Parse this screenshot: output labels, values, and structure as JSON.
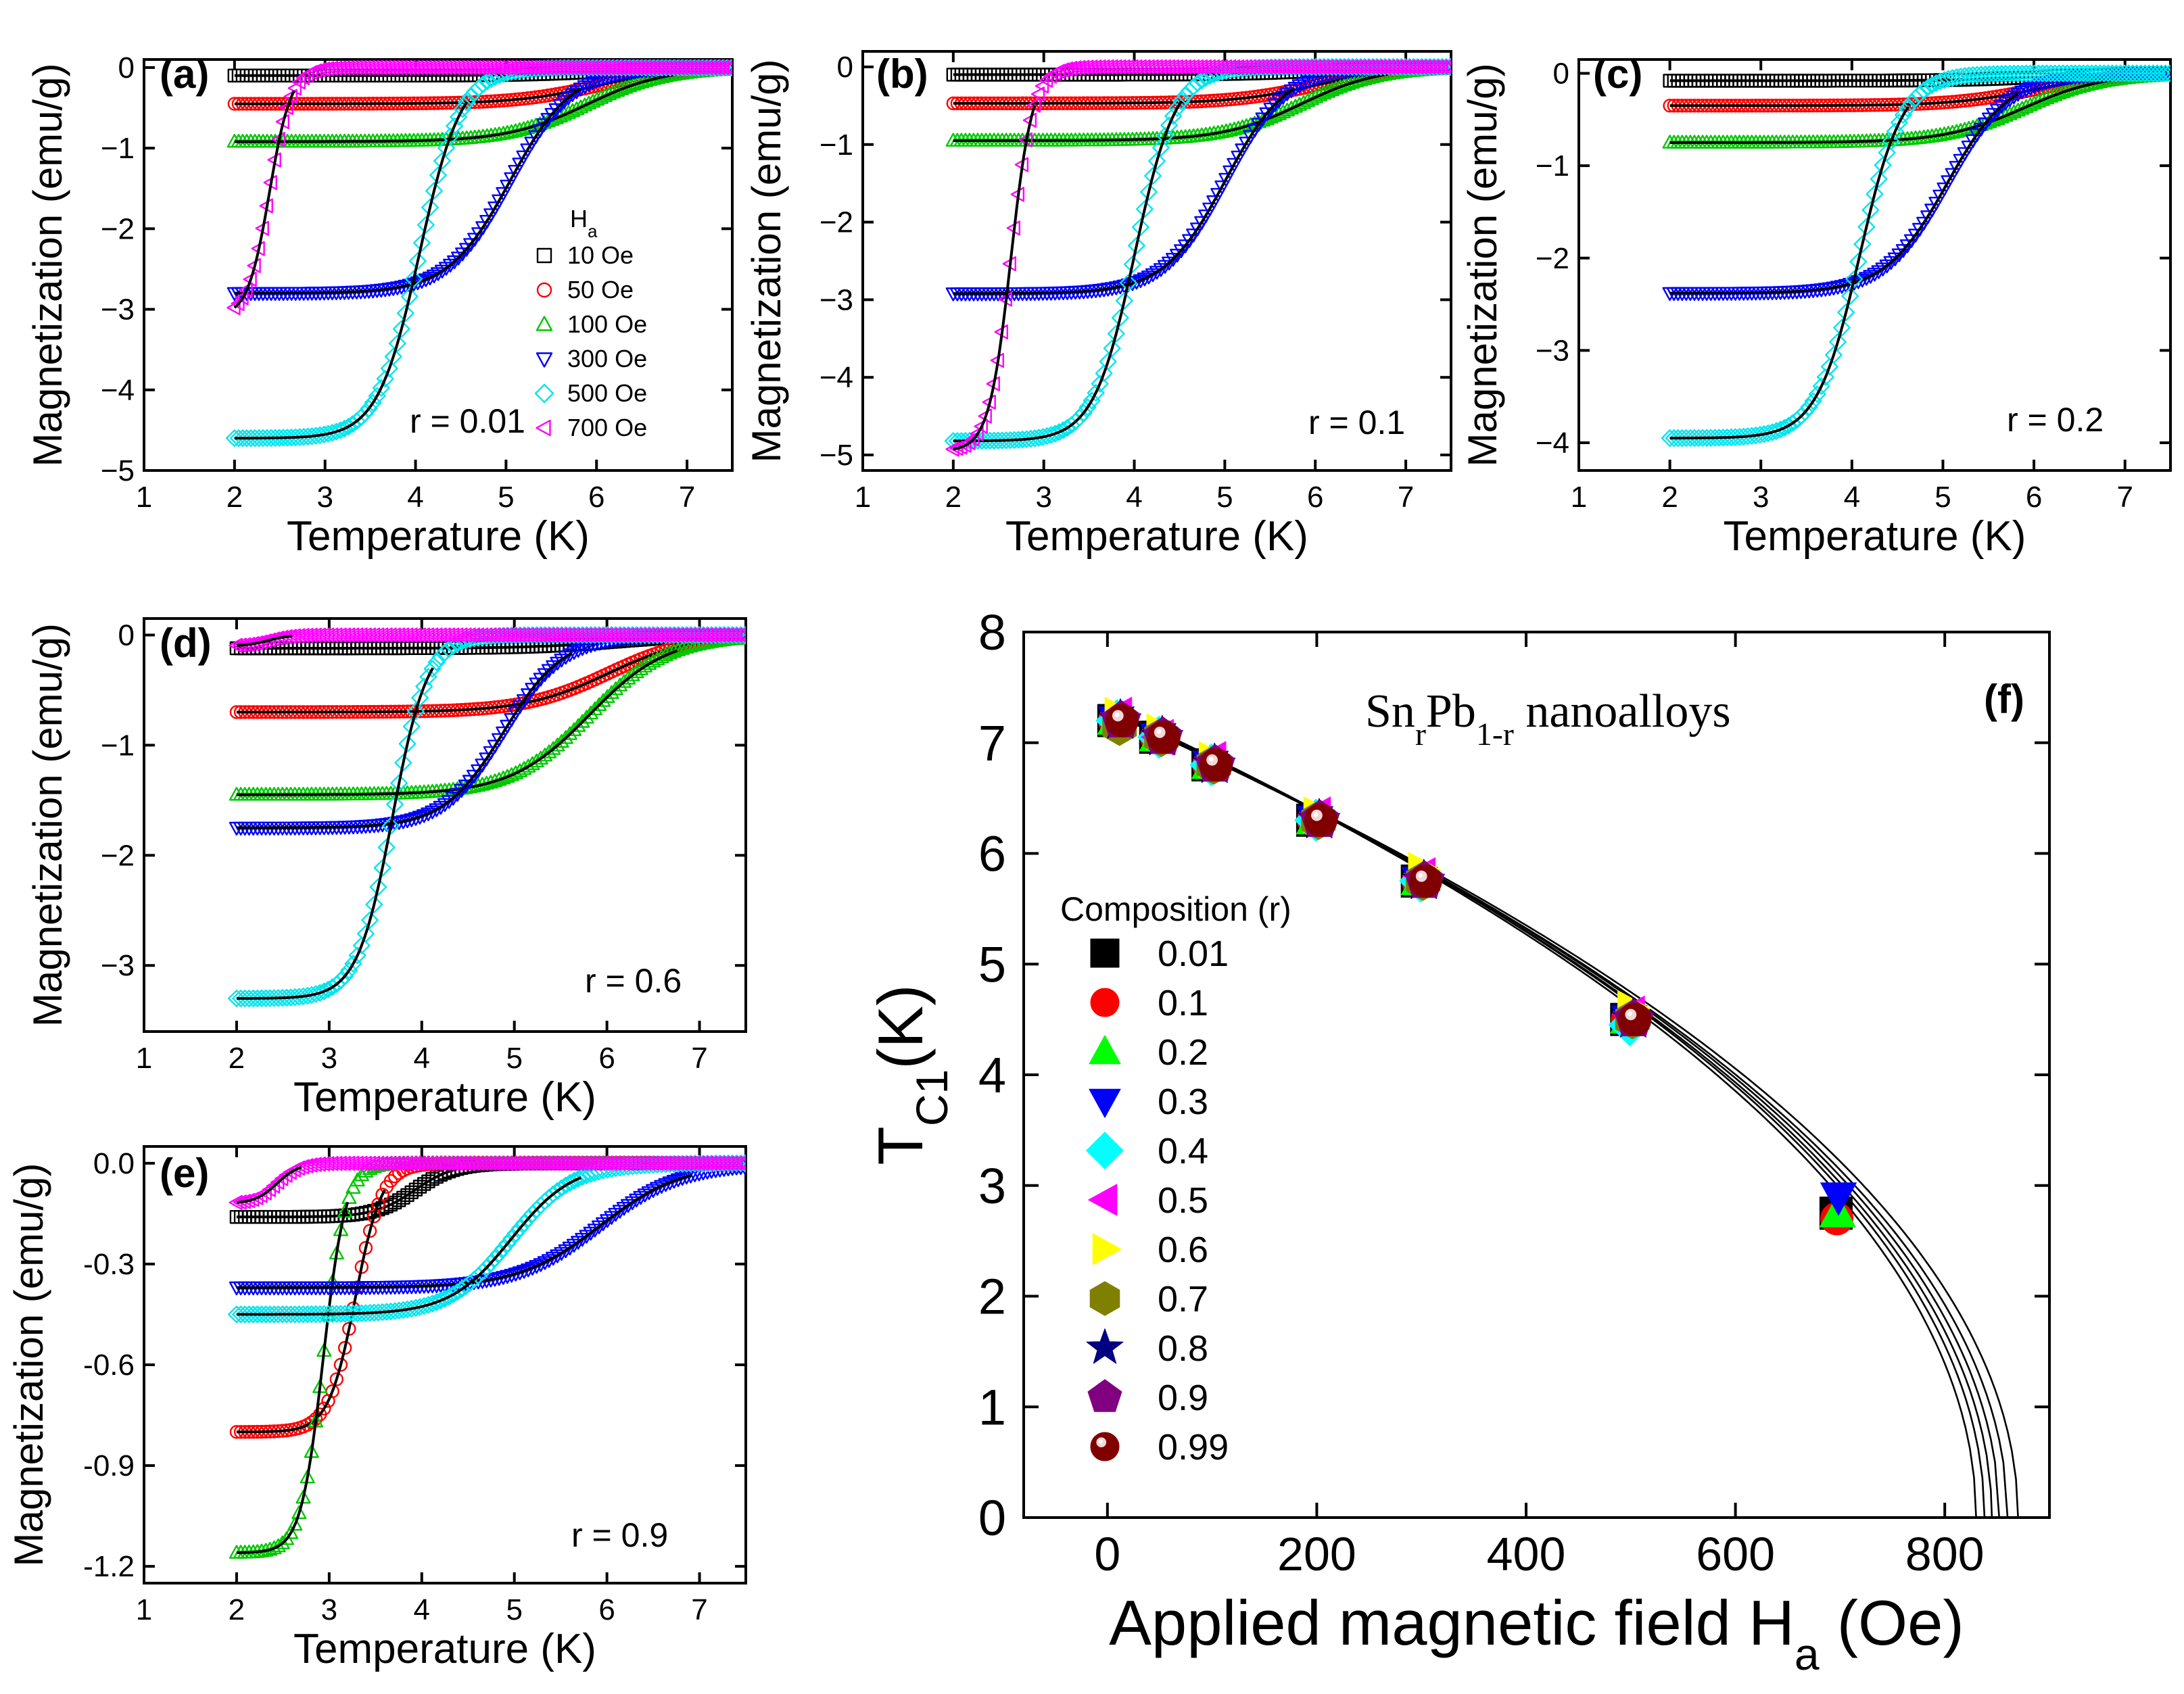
{
  "figure": {
    "title": "Sn_rPb_{1-r} nanoalloys",
    "title_parts": {
      "base1": "Sn",
      "sub1": "r",
      "base2": "Pb",
      "sub2": "1-r",
      "rest": " nanoalloys"
    }
  },
  "colors": {
    "10 Oe": "#000000",
    "50 Oe": "#ff0000",
    "100 Oe": "#00c800",
    "300 Oe": "#0000ff",
    "500 Oe": "#00e5ee",
    "700 Oe": "#ff00ff",
    "fit": "#000000"
  },
  "chart_data": [
    {
      "id": "a",
      "type": "scatter",
      "panel_label": "(a)",
      "annotation": "r = 0.01",
      "xlabel": "Temperature (K)",
      "ylabel": "Magnetization (emu/g)",
      "xlim": [
        1,
        7.5
      ],
      "ylim": [
        -5,
        0.1
      ],
      "xticks": [
        1,
        2,
        3,
        4,
        5,
        6,
        7
      ],
      "yticks": [
        0,
        -1,
        -2,
        -3,
        -4,
        -5
      ],
      "ytick_labels": [
        "0",
        "−1",
        "−2",
        "−3",
        "−4",
        "−5"
      ],
      "legend_title": "H_a",
      "legend_title_parts": {
        "base": "H",
        "sub": "a"
      },
      "legend": [
        "10 Oe",
        "50 Oe",
        "100 Oe",
        "300 Oe",
        "500 Oe",
        "700 Oe"
      ],
      "series": [
        {
          "name": "10 Oe",
          "marker": "square",
          "color": "#000000",
          "M0": -0.1,
          "Tc": 7.05,
          "T0": 2.0
        },
        {
          "name": "50 Oe",
          "marker": "circle",
          "color": "#ff0000",
          "M0": -0.45,
          "Tc": 7.0,
          "T0": 2.0
        },
        {
          "name": "100 Oe",
          "marker": "triangle-up",
          "color": "#00c800",
          "M0": -0.92,
          "Tc": 6.85,
          "T0": 2.0
        },
        {
          "name": "300 Oe",
          "marker": "triangle-down",
          "color": "#0000ff",
          "M0": -2.8,
          "Tc": 5.8,
          "T0": 2.0
        },
        {
          "name": "500 Oe",
          "marker": "diamond",
          "color": "#00e5ee",
          "M0": -4.6,
          "Tc": 4.55,
          "T0": 2.0
        },
        {
          "name": "700 Oe",
          "marker": "triangle-left",
          "color": "#ff00ff",
          "M0": -3.1,
          "Tc": 2.65,
          "T0": 2.0
        }
      ]
    },
    {
      "id": "b",
      "type": "scatter",
      "panel_label": "(b)",
      "annotation": "r = 0.1",
      "xlabel": "Temperature (K)",
      "ylabel": "Magnetization (emu/g)",
      "xlim": [
        1,
        7.5
      ],
      "ylim": [
        -5.2,
        0.2
      ],
      "xticks": [
        1,
        2,
        3,
        4,
        5,
        6,
        7
      ],
      "yticks": [
        0,
        -1,
        -2,
        -3,
        -4,
        -5
      ],
      "ytick_labels": [
        "0",
        "−1",
        "−2",
        "−3",
        "−4",
        "−5"
      ],
      "series": [
        {
          "name": "10 Oe",
          "marker": "square",
          "color": "#000000",
          "M0": -0.1,
          "Tc": 7.05,
          "T0": 2.0
        },
        {
          "name": "50 Oe",
          "marker": "circle",
          "color": "#ff0000",
          "M0": -0.47,
          "Tc": 7.0,
          "T0": 2.0
        },
        {
          "name": "100 Oe",
          "marker": "triangle-up",
          "color": "#00c800",
          "M0": -0.95,
          "Tc": 6.8,
          "T0": 2.0
        },
        {
          "name": "300 Oe",
          "marker": "triangle-down",
          "color": "#0000ff",
          "M0": -2.92,
          "Tc": 5.75,
          "T0": 2.0
        },
        {
          "name": "500 Oe",
          "marker": "diamond",
          "color": "#00e5ee",
          "M0": -4.82,
          "Tc": 4.5,
          "T0": 2.0
        },
        {
          "name": "700 Oe",
          "marker": "triangle-left",
          "color": "#ff00ff",
          "M0": -4.95,
          "Tc": 2.9,
          "T0": 2.0
        }
      ]
    },
    {
      "id": "c",
      "type": "scatter",
      "panel_label": "(c)",
      "annotation": "r = 0.2",
      "xlabel": "Temperature (K)",
      "ylabel": "Magnetization (emu/g)",
      "xlim": [
        1,
        7.5
      ],
      "ylim": [
        -4.3,
        0.15
      ],
      "xticks": [
        1,
        2,
        3,
        4,
        5,
        6,
        7
      ],
      "yticks": [
        0,
        -1,
        -2,
        -3,
        -4
      ],
      "ytick_labels": [
        "0",
        "−1",
        "−2",
        "−3",
        "−4"
      ],
      "series": [
        {
          "name": "10 Oe",
          "marker": "square",
          "color": "#000000",
          "M0": -0.08,
          "Tc": 7.05,
          "T0": 2.0
        },
        {
          "name": "50 Oe",
          "marker": "circle",
          "color": "#ff0000",
          "M0": -0.35,
          "Tc": 7.0,
          "T0": 2.0
        },
        {
          "name": "100 Oe",
          "marker": "triangle-up",
          "color": "#00c800",
          "M0": -0.75,
          "Tc": 6.85,
          "T0": 2.0
        },
        {
          "name": "300 Oe",
          "marker": "triangle-down",
          "color": "#0000ff",
          "M0": -2.38,
          "Tc": 5.8,
          "T0": 2.0
        },
        {
          "name": "500 Oe",
          "marker": "diamond",
          "color": "#00e5ee",
          "M0": -3.95,
          "Tc": 4.6,
          "T0": 2.0
        }
      ]
    },
    {
      "id": "d",
      "type": "scatter",
      "panel_label": "(d)",
      "annotation": "r = 0.6",
      "xlabel": "Temperature (K)",
      "ylabel": "Magnetization (emu/g)",
      "xlim": [
        1,
        7.5
      ],
      "ylim": [
        -3.6,
        0.15
      ],
      "xticks": [
        1,
        2,
        3,
        4,
        5,
        6,
        7
      ],
      "yticks": [
        0,
        -1,
        -2,
        -3
      ],
      "ytick_labels": [
        "0",
        "−1",
        "−2",
        "−3"
      ],
      "series": [
        {
          "name": "10 Oe",
          "marker": "square",
          "color": "#000000",
          "M0": -0.12,
          "Tc": 7.1,
          "T0": 2.0
        },
        {
          "name": "50 Oe",
          "marker": "circle",
          "color": "#ff0000",
          "M0": -0.7,
          "Tc": 7.0,
          "T0": 2.0
        },
        {
          "name": "100 Oe",
          "marker": "triangle-up",
          "color": "#00c800",
          "M0": -1.45,
          "Tc": 6.75,
          "T0": 2.0
        },
        {
          "name": "300 Oe",
          "marker": "triangle-down",
          "color": "#0000ff",
          "M0": -1.75,
          "Tc": 5.6,
          "T0": 2.0
        },
        {
          "name": "500 Oe",
          "marker": "diamond",
          "color": "#00e5ee",
          "M0": -3.3,
          "Tc": 4.1,
          "T0": 2.0
        },
        {
          "name": "700 Oe",
          "marker": "triangle-left",
          "color": "#ff00ff",
          "M0": -0.1,
          "Tc": 2.6,
          "T0": 2.0
        }
      ]
    },
    {
      "id": "e",
      "type": "scatter",
      "panel_label": "(e)",
      "annotation": "r = 0.9",
      "xlabel": "Temperature (K)",
      "ylabel": "Magnetization (emu/g)",
      "xlim": [
        1,
        7.5
      ],
      "ylim": [
        -1.25,
        0.05
      ],
      "xticks": [
        1,
        2,
        3,
        4,
        5,
        6,
        7
      ],
      "yticks": [
        0,
        -0.3,
        -0.6,
        -0.9,
        -1.2
      ],
      "ytick_labels": [
        "0.0",
        "-0.3",
        "-0.6",
        "-0.9",
        "-1.2"
      ],
      "series": [
        {
          "name": "10 Oe",
          "marker": "square",
          "color": "#000000",
          "M0": -0.16,
          "Tc": 4.4,
          "T0": 2.0
        },
        {
          "name": "50 Oe",
          "marker": "circle",
          "color": "#ff0000",
          "M0": -0.8,
          "Tc": 3.6,
          "T0": 2.0
        },
        {
          "name": "100 Oe",
          "marker": "triangle-up",
          "color": "#00c800",
          "M0": -1.16,
          "Tc": 3.2,
          "T0": 2.0
        },
        {
          "name": "300 Oe",
          "marker": "triangle-down",
          "color": "#0000ff",
          "M0": -0.37,
          "Tc": 6.9,
          "T0": 2.0
        },
        {
          "name": "500 Oe",
          "marker": "diamond",
          "color": "#00e5ee",
          "M0": -0.45,
          "Tc": 5.7,
          "T0": 2.0
        },
        {
          "name": "700 Oe",
          "marker": "triangle-left",
          "color": "#ff00ff",
          "M0": -0.12,
          "Tc": 2.7,
          "T0": 2.0
        }
      ]
    },
    {
      "id": "f",
      "type": "scatter",
      "panel_label": "(f)",
      "xlabel": "Applied magnetic field H_a (Oe)",
      "xlabel_parts": {
        "pre": "Applied magnetic field H",
        "sub": "a",
        "post": " (Oe)"
      },
      "ylabel": "T_C1(K)",
      "ylabel_parts": {
        "base": "T",
        "sub": "C1",
        "post": "(K)"
      },
      "xlim": [
        -80,
        900
      ],
      "ylim": [
        0,
        8
      ],
      "xticks": [
        0,
        200,
        400,
        600,
        800
      ],
      "yticks": [
        0,
        1,
        2,
        3,
        4,
        5,
        6,
        7,
        8
      ],
      "legend_title": "Composition (r)",
      "x": [
        10,
        50,
        100,
        200,
        300,
        500,
        700
      ],
      "series": [
        {
          "name": "0.01",
          "marker": "square",
          "color": "#000000",
          "values": [
            7.2,
            7.05,
            6.8,
            6.3,
            5.75,
            4.5,
            2.75
          ]
        },
        {
          "name": "0.1",
          "marker": "circle",
          "color": "#ff0000",
          "values": [
            7.2,
            7.05,
            6.8,
            6.3,
            5.75,
            4.5,
            2.7
          ]
        },
        {
          "name": "0.2",
          "marker": "triangle-up",
          "color": "#00ff00",
          "values": [
            7.2,
            7.05,
            6.8,
            6.3,
            5.75,
            4.5,
            2.75
          ]
        },
        {
          "name": "0.3",
          "marker": "triangle-down",
          "color": "#0000ff",
          "values": [
            7.2,
            7.05,
            6.8,
            6.3,
            5.75,
            4.5,
            2.9
          ]
        },
        {
          "name": "0.4",
          "marker": "diamond",
          "color": "#00ffff",
          "values": [
            7.2,
            7.05,
            6.8,
            6.3,
            5.75,
            4.45
          ]
        },
        {
          "name": "0.5",
          "marker": "triangle-left",
          "color": "#ff00ff",
          "values": [
            7.25,
            7.05,
            6.85,
            6.35,
            5.8,
            4.55
          ]
        },
        {
          "name": "0.6",
          "marker": "triangle-right",
          "color": "#ffff00",
          "values": [
            7.25,
            7.1,
            6.85,
            6.35,
            5.85,
            4.6
          ]
        },
        {
          "name": "0.7",
          "marker": "hexagon",
          "color": "#808000",
          "values": [
            7.15,
            7.05,
            6.8,
            6.3,
            5.75,
            4.5
          ]
        },
        {
          "name": "0.8",
          "marker": "star",
          "color": "#000080",
          "values": [
            7.2,
            7.05,
            6.8,
            6.3,
            5.75,
            4.5
          ]
        },
        {
          "name": "0.9",
          "marker": "pentagon",
          "color": "#800080",
          "values": [
            7.2,
            7.05,
            6.8,
            6.3,
            5.75,
            4.5
          ]
        },
        {
          "name": "0.99",
          "marker": "sphere",
          "color": "#800000",
          "values": [
            7.2,
            7.05,
            6.8,
            6.3,
            5.75,
            4.5
          ]
        }
      ],
      "fit_curves": [
        {
          "Tc": 7.32,
          "Hc": 830
        },
        {
          "Tc": 7.32,
          "Hc": 838
        },
        {
          "Tc": 7.3,
          "Hc": 845
        },
        {
          "Tc": 7.3,
          "Hc": 852
        },
        {
          "Tc": 7.28,
          "Hc": 860
        },
        {
          "Tc": 7.28,
          "Hc": 870
        }
      ]
    }
  ]
}
